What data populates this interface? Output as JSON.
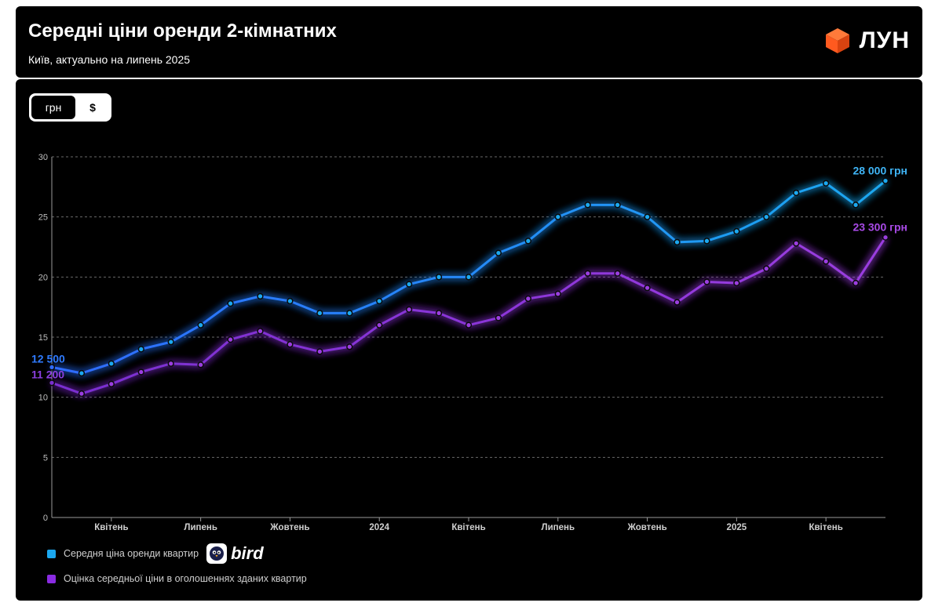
{
  "header": {
    "title": "Середні ціни оренди 2-кімнатних",
    "subtitle": "Київ, актуально на липень 2025",
    "logo_text": "ЛУН",
    "logo_color": "#ff5a1f"
  },
  "toggle": {
    "active_label": "грн",
    "inactive_label": "$"
  },
  "legend": {
    "items": [
      {
        "label": "Середня ціна оренди квартир",
        "color": "#1ba8f0"
      },
      {
        "label": "Оцінка середньої ціни в оголошеннях зданих квартир",
        "color": "#8a2be2"
      }
    ],
    "sponsor": "bird"
  },
  "chart_data": {
    "type": "line",
    "y_ticks": [
      "0",
      "5",
      "10",
      "15",
      "20",
      "25",
      "30"
    ],
    "ylim": [
      0,
      30
    ],
    "x_tick_labels": [
      {
        "label": "Квітень",
        "index": 2
      },
      {
        "label": "Липень",
        "index": 5
      },
      {
        "label": "Жовтень",
        "index": 8
      },
      {
        "label": "2024",
        "index": 11
      },
      {
        "label": "Квітень",
        "index": 14
      },
      {
        "label": "Липень",
        "index": 17
      },
      {
        "label": "Жовтень",
        "index": 20
      },
      {
        "label": "2025",
        "index": 23
      },
      {
        "label": "Квітень",
        "index": 26
      }
    ],
    "grid": true,
    "series": [
      {
        "name": "Середня ціна оренди квартир",
        "color": "#1ba8f0",
        "color_start": "#2f6bff",
        "values": [
          12.5,
          12.0,
          12.8,
          14.0,
          14.6,
          16.0,
          17.8,
          18.4,
          18.0,
          17.0,
          17.0,
          18.0,
          19.4,
          20.0,
          20.0,
          22.0,
          23.0,
          25.0,
          26.0,
          26.0,
          25.0,
          22.9,
          23.0,
          23.8,
          25.0,
          27.0,
          27.8,
          26.0,
          28.0
        ],
        "start_label": "12 500",
        "end_label": "28 000 грн"
      },
      {
        "name": "Оцінка середньої ціни в оголошеннях зданих квартир",
        "color": "#9b3de0",
        "color_start": "#7a2ed0",
        "values": [
          11.2,
          10.3,
          11.1,
          12.1,
          12.8,
          12.7,
          14.8,
          15.5,
          14.4,
          13.8,
          14.2,
          16.0,
          17.3,
          17.0,
          16.0,
          16.6,
          18.2,
          18.6,
          20.3,
          20.3,
          19.1,
          17.9,
          19.6,
          19.5,
          20.7,
          22.8,
          21.3,
          19.5,
          23.3
        ],
        "start_label": "11 200",
        "end_label": "23 300 грн"
      }
    ]
  }
}
